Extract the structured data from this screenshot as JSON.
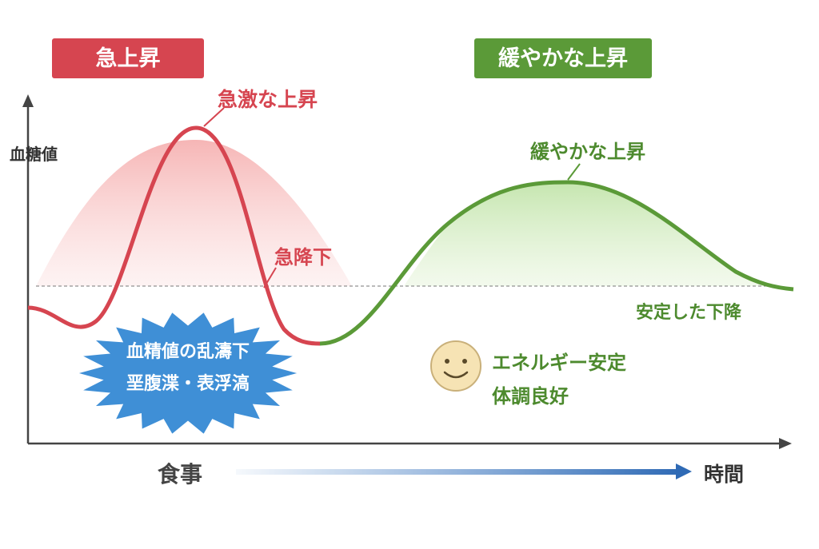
{
  "header": {
    "left_label": "急上昇",
    "right_label": "緩やかな上昇"
  },
  "axes": {
    "y_label": "血糖値",
    "x_start": "食事",
    "x_end": "時間"
  },
  "annotations": {
    "spike": "急激な上昇",
    "drop": "急降下",
    "gentle": "緩やかな上昇",
    "stable": "安定した下降"
  },
  "burst": {
    "line1": "血精値の乱濤下",
    "line2": "垩腹渫・表浮滈"
  },
  "smile": {
    "line1": "エネルギー安定",
    "line2": "体調良好"
  }
}
